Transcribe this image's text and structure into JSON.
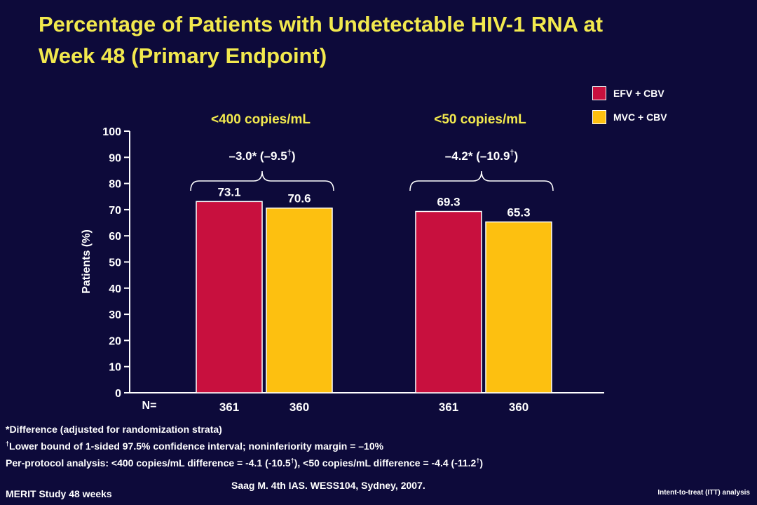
{
  "slide": {
    "title_line1": "Percentage of Patients with Undetectable HIV-1 RNA at",
    "title_line2": "Week 48  (Primary Endpoint)",
    "footnotes": {
      "difference": "*Difference (adjusted for randomization strata)",
      "lower_bound": "Lower bound of 1-sided 97.5% confidence interval; noninferiority margin = –10%",
      "per_protocol_a": "Per-protocol analysis: <400 copies/mL difference = -4.1 (-10.5",
      "per_protocol_b": "), <50 copies/mL difference = -4.4 (-11.2",
      "per_protocol_c": ")",
      "dagger": "†"
    },
    "study_label": "MERIT Study 48 weeks",
    "citation": "Saag M. 4th IAS. WESS104, Sydney, 2007.",
    "analysis_label": "Intent-to-treat (ITT) analysis"
  },
  "chart_data": {
    "type": "bar",
    "categories": [
      "<400 copies/mL",
      "<50 copies/mL"
    ],
    "series": [
      {
        "name": "EFV + CBV",
        "values": [
          73.1,
          69.3
        ],
        "n": [
          "361",
          "361"
        ]
      },
      {
        "name": "MVC + CBV",
        "values": [
          70.6,
          65.3
        ],
        "n": [
          "360",
          "360"
        ]
      }
    ],
    "differences": [
      {
        "main": "–3.0* (–9.5",
        "dagger": "†",
        "close": ")"
      },
      {
        "main": "–4.2* (–10.9",
        "dagger": "†",
        "close": ")"
      }
    ],
    "ylabel": "Patients (%)",
    "n_label": "N=",
    "ylim": [
      0,
      100
    ],
    "yticks": [
      0,
      10,
      20,
      30,
      40,
      50,
      60,
      70,
      80,
      90,
      100
    ],
    "colors": {
      "EFV + CBV": "#c8103e",
      "MVC + CBV": "#fdc010"
    },
    "legend_position": "top-right",
    "grid": false
  }
}
